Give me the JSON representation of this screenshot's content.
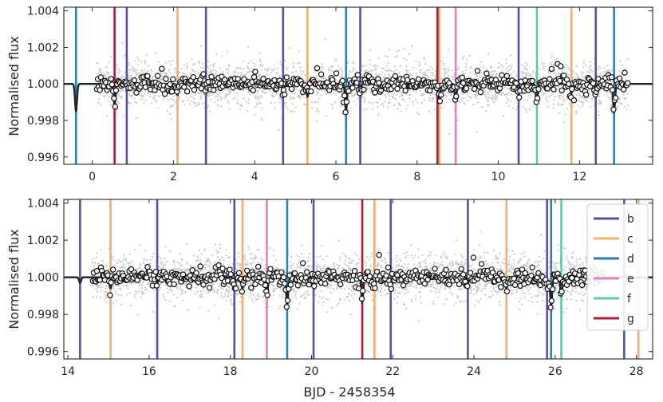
{
  "figure": {
    "xlabel": "BJD - 2458354",
    "ylabel": "Normalised flux"
  },
  "colors": {
    "b": "#5b4ea6",
    "c": "#f6ad6b",
    "d": "#2f7fb3",
    "e": "#dd84bd",
    "f": "#5ec9a4",
    "g": "#ad1a35",
    "raw_points": "#c9c9c9",
    "binned_edge": "#111111",
    "model": "#1b2530"
  },
  "legend": {
    "placement": "top-right of bottom panel",
    "entries": [
      {
        "label": "b",
        "planet": "b"
      },
      {
        "label": "c",
        "planet": "c"
      },
      {
        "label": "d",
        "planet": "d"
      },
      {
        "label": "e",
        "planet": "e"
      },
      {
        "label": "f",
        "planet": "f"
      },
      {
        "label": "g",
        "planet": "g"
      }
    ]
  },
  "chart_data": [
    {
      "type": "scatter",
      "panel": "top",
      "title": "",
      "xlabel": "",
      "ylabel": "Normalised flux",
      "xlim": [
        -0.7,
        13.8
      ],
      "ylim": [
        0.9956,
        1.0042
      ],
      "xticks": [
        0,
        2,
        4,
        6,
        8,
        10,
        12
      ],
      "xtick_labels": [
        "0",
        "2",
        "4",
        "6",
        "8",
        "10",
        "12"
      ],
      "yticks": [
        0.996,
        0.998,
        1.0,
        1.002,
        1.004
      ],
      "ytick_labels": [
        "0.996",
        "0.998",
        "1.000",
        "1.002",
        "1.004"
      ],
      "grid": false,
      "data_range": [
        0.1,
        13.2
      ],
      "transit_markers": [
        {
          "planet": "b",
          "x": [
            0.85,
            2.8,
            4.7,
            6.6,
            10.5,
            12.4
          ]
        },
        {
          "planet": "c",
          "x": [
            2.1,
            5.3,
            8.55,
            11.8
          ]
        },
        {
          "planet": "d",
          "x": [
            -0.4,
            6.25,
            12.85
          ]
        },
        {
          "planet": "e",
          "x": [
            8.95
          ]
        },
        {
          "planet": "f",
          "x": [
            10.95
          ]
        },
        {
          "planet": "g",
          "x": [
            0.55,
            8.5
          ]
        }
      ],
      "dips": [
        {
          "x": -0.4,
          "depth": 0.0015
        },
        {
          "x": 0.55,
          "depth": 0.0012
        },
        {
          "x": 2.1,
          "depth": 0.0006
        },
        {
          "x": 4.7,
          "depth": 0.0006
        },
        {
          "x": 5.3,
          "depth": 0.0007
        },
        {
          "x": 6.25,
          "depth": 0.0015
        },
        {
          "x": 6.6,
          "depth": 0.0003
        },
        {
          "x": 8.55,
          "depth": 0.0008
        },
        {
          "x": 8.95,
          "depth": 0.0009
        },
        {
          "x": 10.5,
          "depth": 0.0005
        },
        {
          "x": 10.95,
          "depth": 0.001
        },
        {
          "x": 11.8,
          "depth": 0.0005
        },
        {
          "x": 12.4,
          "depth": 0.0003
        },
        {
          "x": 12.85,
          "depth": 0.0015
        }
      ]
    },
    {
      "type": "scatter",
      "panel": "bottom",
      "title": "",
      "xlabel": "BJD - 2458354",
      "ylabel": "Normalised flux",
      "xlim": [
        13.9,
        28.4
      ],
      "ylim": [
        0.9956,
        1.0042
      ],
      "xticks": [
        14,
        16,
        18,
        20,
        22,
        24,
        26,
        28
      ],
      "xtick_labels": [
        "14",
        "16",
        "18",
        "20",
        "22",
        "24",
        "26",
        "28"
      ],
      "yticks": [
        0.996,
        0.998,
        1.0,
        1.002,
        1.004
      ],
      "ytick_labels": [
        "0.996",
        "0.998",
        "1.000",
        "1.002",
        "1.004"
      ],
      "grid": false,
      "data_range": [
        14.6,
        27.2
      ],
      "transit_markers": [
        {
          "planet": "b",
          "x": [
            14.3,
            16.2,
            18.1,
            20.05,
            21.95,
            23.85,
            25.8,
            27.7
          ]
        },
        {
          "planet": "c",
          "x": [
            15.05,
            18.3,
            21.55,
            24.8,
            28.05
          ]
        },
        {
          "planet": "d",
          "x": [
            19.4,
            25.9
          ]
        },
        {
          "planet": "e",
          "x": [
            18.9
          ]
        },
        {
          "planet": "f",
          "x": [
            26.15
          ]
        },
        {
          "planet": "g",
          "x": [
            21.25
          ]
        }
      ],
      "dips": [
        {
          "x": 14.3,
          "depth": 0.0003
        },
        {
          "x": 15.05,
          "depth": 0.0006
        },
        {
          "x": 16.2,
          "depth": 0.0003
        },
        {
          "x": 18.1,
          "depth": 0.0005
        },
        {
          "x": 18.3,
          "depth": 0.0006
        },
        {
          "x": 18.9,
          "depth": 0.001
        },
        {
          "x": 19.4,
          "depth": 0.0015
        },
        {
          "x": 20.05,
          "depth": 0.0004
        },
        {
          "x": 21.25,
          "depth": 0.0013
        },
        {
          "x": 21.55,
          "depth": 0.0006
        },
        {
          "x": 21.95,
          "depth": 0.0004
        },
        {
          "x": 23.85,
          "depth": 0.0003
        },
        {
          "x": 24.8,
          "depth": 0.0006
        },
        {
          "x": 25.8,
          "depth": 0.0004
        },
        {
          "x": 25.9,
          "depth": 0.0015
        },
        {
          "x": 26.15,
          "depth": 0.001
        }
      ]
    }
  ]
}
